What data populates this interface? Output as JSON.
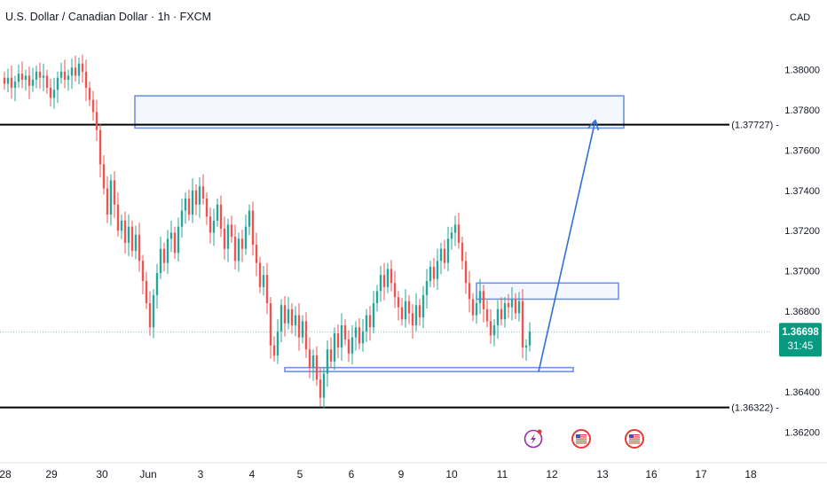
{
  "header": {
    "symbol_title": "U.S. Dollar / Canadian Dollar · 1h · FXCM",
    "currency": "CAD"
  },
  "price_tag": {
    "price": "1.36698",
    "countdown": "31:45",
    "color": "#089981"
  },
  "event_icons": [
    "lightning-icon",
    "us-flag-icon",
    "us-flag-icon"
  ],
  "colors": {
    "up": "#26a69a",
    "down": "#ef5350",
    "zone": "#6f93e8",
    "arrow": "#2f6fd6",
    "level": "#000000",
    "event_lightning": "#9c27b0",
    "event_flag": "#e53935"
  },
  "chart_data": {
    "type": "candlestick",
    "title": "U.S. Dollar / Canadian Dollar · 1h · FXCM",
    "ylim": [
      1.361,
      1.3817
    ],
    "y_ticks": [
      "1.38000",
      "1.37800",
      "1.37600",
      "1.37400",
      "1.37200",
      "1.37000",
      "1.36800",
      "1.36600",
      "1.36400",
      "1.36200"
    ],
    "x_ticks": [
      "28",
      "29",
      "30",
      "Jun",
      "3",
      "4",
      "5",
      "6",
      "9",
      "10",
      "11",
      "12",
      "13",
      "16",
      "17",
      "18"
    ],
    "grid": false,
    "current_price": 1.36698,
    "horizontal_levels": [
      {
        "value": 1.37727,
        "label": "(1.37727)"
      },
      {
        "value": 1.36322,
        "label": "(1.36322)"
      }
    ],
    "zones": [
      {
        "from": "May 30",
        "to": "Jun 13",
        "top": 1.3787,
        "bottom": 1.3771
      },
      {
        "from": "Jun 10",
        "to": "Jun 13",
        "top": 1.3694,
        "bottom": 1.3686
      },
      {
        "from": "Jun 4",
        "to": "Jun 12",
        "top": 1.3652,
        "bottom": 1.365
      }
    ],
    "projection_arrow": {
      "from_price": 1.365,
      "to_price": 1.3775
    },
    "series": [
      {
        "name": "",
        "closes": [
          1.3793,
          1.3796,
          1.3791,
          1.3794,
          1.3798,
          1.3795,
          1.3797,
          1.3792,
          1.3795,
          1.3799,
          1.3796,
          1.3797,
          1.3791,
          1.3786,
          1.379,
          1.3796,
          1.3799,
          1.3795,
          1.3797,
          1.3801,
          1.3797,
          1.3803,
          1.3799,
          1.3791,
          1.3785,
          1.3779,
          1.377,
          1.3753,
          1.3741,
          1.3728,
          1.3745,
          1.3733,
          1.372,
          1.3725,
          1.3714,
          1.3722,
          1.371,
          1.3718,
          1.3705,
          1.3695,
          1.3684,
          1.3672,
          1.3688,
          1.3699,
          1.3711,
          1.3704,
          1.3716,
          1.3719,
          1.3709,
          1.3722,
          1.373,
          1.3736,
          1.3728,
          1.374,
          1.3733,
          1.3742,
          1.3736,
          1.3727,
          1.3719,
          1.3725,
          1.3733,
          1.3721,
          1.3711,
          1.3723,
          1.3717,
          1.3705,
          1.3716,
          1.3711,
          1.3722,
          1.373,
          1.3713,
          1.3704,
          1.3692,
          1.3698,
          1.3684,
          1.3663,
          1.3658,
          1.367,
          1.3683,
          1.3674,
          1.3681,
          1.3673,
          1.3678,
          1.3667,
          1.3675,
          1.3661,
          1.3652,
          1.3658,
          1.3646,
          1.3637,
          1.3649,
          1.3661,
          1.3655,
          1.3669,
          1.3662,
          1.3673,
          1.3666,
          1.3659,
          1.3667,
          1.3672,
          1.3664,
          1.367,
          1.3678,
          1.3672,
          1.3684,
          1.369,
          1.3698,
          1.3692,
          1.3701,
          1.3694,
          1.3687,
          1.3682,
          1.3676,
          1.3685,
          1.3679,
          1.3673,
          1.3683,
          1.3677,
          1.3688,
          1.3695,
          1.3702,
          1.3696,
          1.3705,
          1.3711,
          1.3704,
          1.3716,
          1.3719,
          1.3723,
          1.3714,
          1.3705,
          1.3694,
          1.3686,
          1.3678,
          1.3684,
          1.369,
          1.3681,
          1.3675,
          1.3668,
          1.3673,
          1.3681,
          1.3676,
          1.3684,
          1.3682,
          1.3686,
          1.3679,
          1.3685,
          1.3662,
          1.3663,
          1.367
        ]
      }
    ]
  }
}
